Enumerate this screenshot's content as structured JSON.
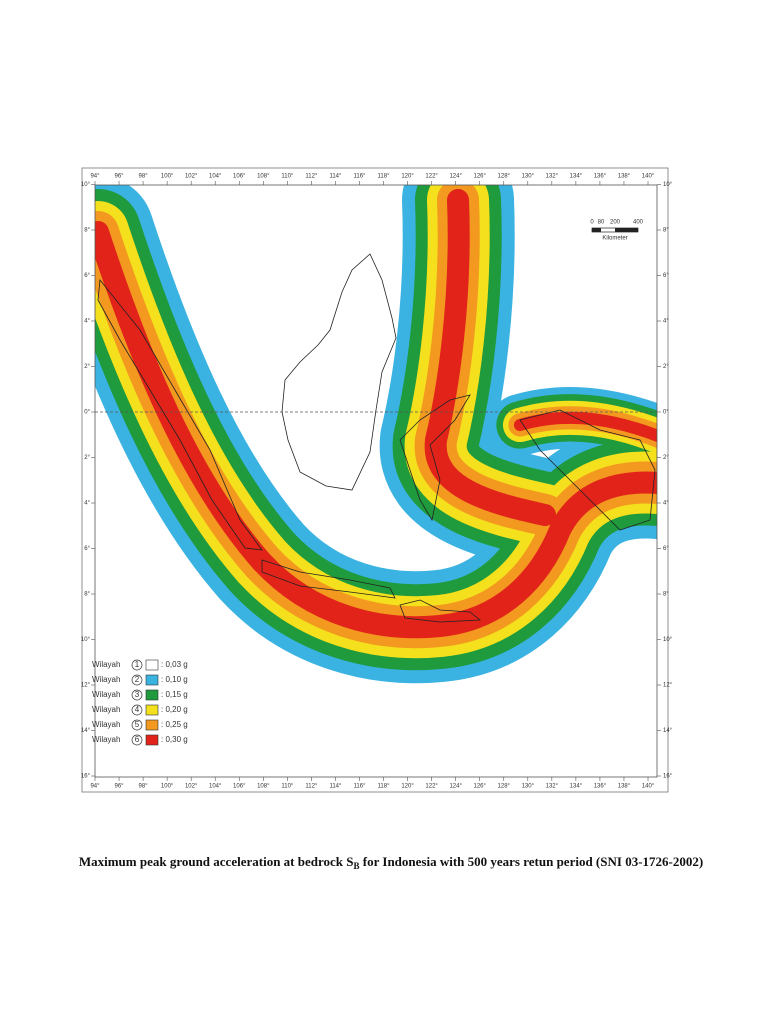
{
  "map": {
    "caption": {
      "main": "Maximum peak ground acceleration at bedrock S",
      "subscript": "B",
      "rest": " for Indonesia with 500 years retun period (SNI 03-1726-2002)"
    },
    "longitude_ticks": [
      {
        "value": 94,
        "label": "94°"
      },
      {
        "value": 96,
        "label": "96°"
      },
      {
        "value": 98,
        "label": "98°"
      },
      {
        "value": 100,
        "label": "100°"
      },
      {
        "value": 102,
        "label": "102°"
      },
      {
        "value": 104,
        "label": "104°"
      },
      {
        "value": 106,
        "label": "106°"
      },
      {
        "value": 108,
        "label": "108°"
      },
      {
        "value": 110,
        "label": "110°"
      },
      {
        "value": 112,
        "label": "112°"
      },
      {
        "value": 114,
        "label": "114°"
      },
      {
        "value": 116,
        "label": "116°"
      },
      {
        "value": 118,
        "label": "118°"
      },
      {
        "value": 120,
        "label": "120°"
      },
      {
        "value": 122,
        "label": "122°"
      },
      {
        "value": 124,
        "label": "124°"
      },
      {
        "value": 126,
        "label": "126°"
      },
      {
        "value": 128,
        "label": "128°"
      },
      {
        "value": 130,
        "label": "130°"
      },
      {
        "value": 132,
        "label": "132°"
      },
      {
        "value": 134,
        "label": "134°"
      },
      {
        "value": 136,
        "label": "136°"
      },
      {
        "value": 138,
        "label": "138°"
      },
      {
        "value": 140,
        "label": "140°"
      }
    ],
    "latitude_ticks": [
      {
        "value": 10,
        "label": "10°"
      },
      {
        "value": 8,
        "label": "8°"
      },
      {
        "value": 6,
        "label": "6°"
      },
      {
        "value": 4,
        "label": "4°"
      },
      {
        "value": 2,
        "label": "2°"
      },
      {
        "value": 0,
        "label": "0°"
      },
      {
        "value": -2,
        "label": "2°"
      },
      {
        "value": -4,
        "label": "4°"
      },
      {
        "value": -6,
        "label": "6°"
      },
      {
        "value": -8,
        "label": "8°"
      },
      {
        "value": -10,
        "label": "10°"
      },
      {
        "value": -12,
        "label": "12°"
      },
      {
        "value": -14,
        "label": "14°"
      },
      {
        "value": -16,
        "label": "16°"
      }
    ],
    "scale_bar": {
      "labels": [
        "0",
        "80",
        "200",
        "400"
      ],
      "unit": "Kilometer"
    },
    "legend": [
      {
        "zone": "Wilayah",
        "number": "1",
        "label": ": 0,03 g",
        "color": "#ffffff"
      },
      {
        "zone": "Wilayah",
        "number": "2",
        "label": ": 0,10 g",
        "color": "#3ab3e2"
      },
      {
        "zone": "Wilayah",
        "number": "3",
        "label": ": 0,15 g",
        "color": "#1f9a3c"
      },
      {
        "zone": "Wilayah",
        "number": "4",
        "label": ": 0,20 g",
        "color": "#f4e01c"
      },
      {
        "zone": "Wilayah",
        "number": "5",
        "label": ": 0,25 g",
        "color": "#f3991f"
      },
      {
        "zone": "Wilayah",
        "number": "6",
        "label": ": 0,30 g",
        "color": "#e2231a"
      }
    ]
  }
}
